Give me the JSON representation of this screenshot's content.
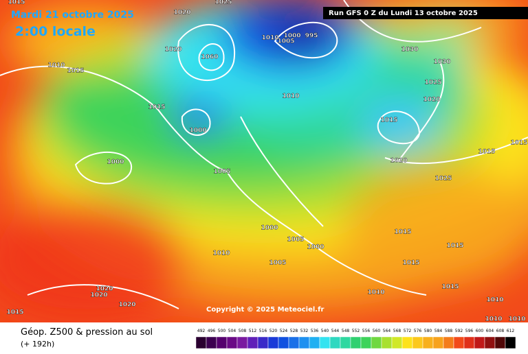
{
  "header": {
    "date": "Mardi 21 octobre 2025",
    "time": "2:00 locale",
    "run": "Run GFS 0 Z du Lundi 13 octobre 2025"
  },
  "copyright": "Copyright © 2025 Meteociel.fr",
  "legend": {
    "title": "Géop. Z500 & pression au sol",
    "subtitle": "(+ 192h)",
    "scale": [
      492,
      496,
      500,
      504,
      508,
      512,
      516,
      520,
      524,
      528,
      532,
      536,
      540,
      544,
      548,
      552,
      556,
      560,
      564,
      568,
      572,
      576,
      580,
      584,
      588,
      592,
      596,
      600,
      604,
      608,
      612
    ]
  },
  "isobar_labels": [
    "1015",
    "1020",
    "1025",
    "1010",
    "1005",
    "1000",
    "995",
    "1020",
    "1060",
    "1010",
    "1015",
    "1030",
    "1030",
    "1025",
    "1020",
    "1015",
    "1010",
    "1015",
    "1000",
    "1020",
    "1015",
    "1015",
    "1000",
    "1005",
    "1025",
    "1000",
    "1015",
    "1005",
    "1000",
    "1015",
    "1010",
    "1005",
    "1015",
    "1020",
    "1020",
    "1020",
    "1010",
    "1015",
    "1010",
    "1015",
    "1010",
    "1010"
  ]
}
